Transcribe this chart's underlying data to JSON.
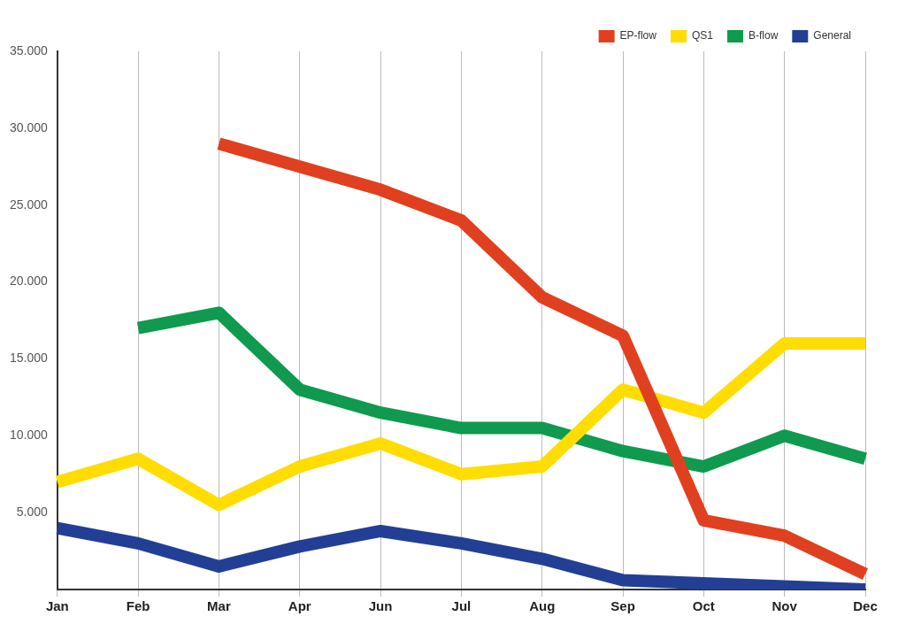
{
  "chart_data": {
    "type": "line",
    "categories": [
      "Jan",
      "Feb",
      "Mar",
      "Apr",
      "Jun",
      "Jul",
      "Aug",
      "Sep",
      "Oct",
      "Nov",
      "Dec"
    ],
    "series": [
      {
        "name": "EP-flow",
        "color": "#e0401f",
        "values": [
          null,
          null,
          29000,
          27500,
          26000,
          24000,
          19000,
          16500,
          4500,
          3500,
          1000
        ]
      },
      {
        "name": "QS1",
        "color": "#ffdd00",
        "values": [
          7000,
          8500,
          5500,
          8000,
          9500,
          7500,
          8000,
          13000,
          11500,
          16000,
          16000
        ]
      },
      {
        "name": "B-flow",
        "color": "#0f9a4f",
        "values": [
          null,
          17000,
          18000,
          13000,
          11500,
          10500,
          10500,
          9000,
          8000,
          10000,
          8500
        ]
      },
      {
        "name": "General",
        "color": "#233f95",
        "values": [
          4000,
          3000,
          1500,
          2800,
          3800,
          3000,
          2000,
          600,
          400,
          200,
          0
        ]
      }
    ],
    "ylim": [
      0,
      35000
    ],
    "yticks": [
      {
        "value": 5000,
        "label": "5.000"
      },
      {
        "value": 10000,
        "label": "10.000"
      },
      {
        "value": 15000,
        "label": "15.000"
      },
      {
        "value": 20000,
        "label": "20.000"
      },
      {
        "value": 25000,
        "label": "25.000"
      },
      {
        "value": 30000,
        "label": "30.000"
      },
      {
        "value": 35000,
        "label": "35.000"
      }
    ],
    "grid": "x",
    "legend": "top right",
    "marker": "none",
    "line_style": "solid"
  }
}
